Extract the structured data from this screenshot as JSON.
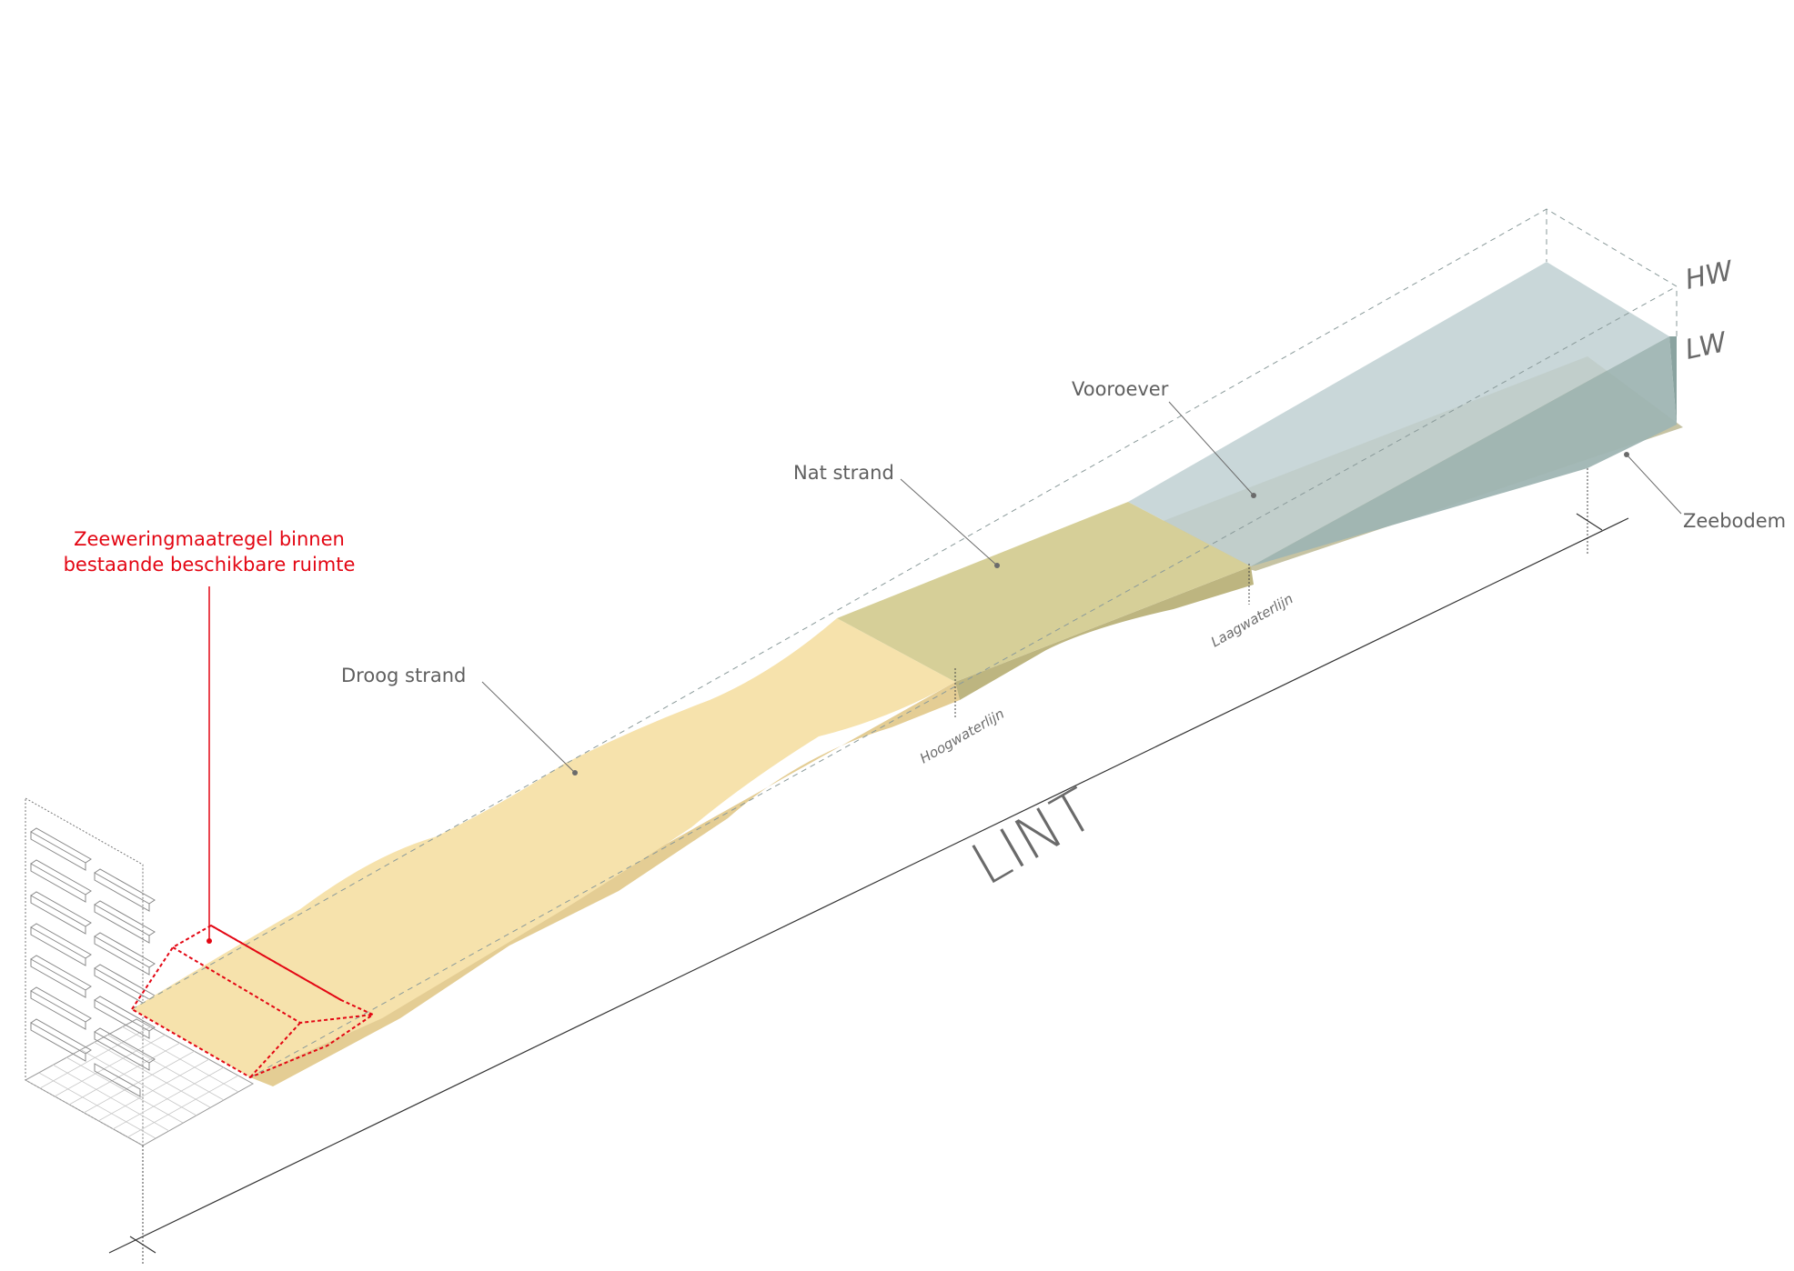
{
  "labels": {
    "measure_red_line1": "Zeeweringmaatregel binnen",
    "measure_red_line2": "bestaande beschikbare ruimte",
    "droog_strand": "Droog strand",
    "nat_strand": "Nat strand",
    "vooroever": "Vooroever",
    "zeebodem": "Zeebodem",
    "hoogwaterlijn": "Hoogwaterlijn",
    "laagwaterlijn": "Laagwaterlijn",
    "hw": "HW",
    "lw": "LW",
    "lint": "LINT"
  },
  "colors": {
    "dry_beach": "#f6e2ac",
    "dry_beach_side": "#e4cd94",
    "wet_beach": "#d6cf98",
    "wet_beach_side": "#bdb580",
    "water_top": "#bfd0d2",
    "water_side": "#9fb5b3",
    "seabed": "#c6c3a3",
    "measure": "#e30613",
    "lines": "#333333"
  }
}
